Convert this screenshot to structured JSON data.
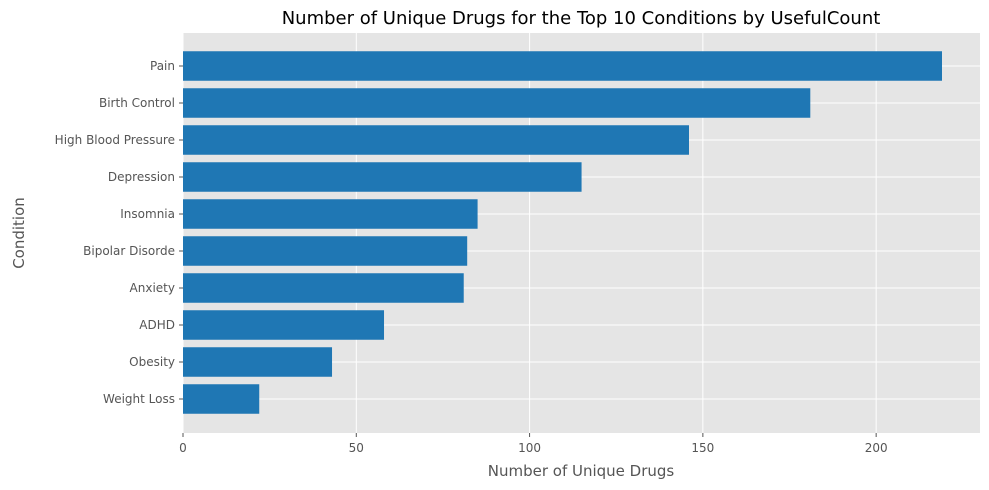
{
  "chart_data": {
    "type": "bar",
    "orientation": "horizontal",
    "title": "Number of Unique Drugs for the Top 10 Conditions by UsefulCount",
    "xlabel": "Number of Unique Drugs",
    "ylabel": "Condition",
    "categories": [
      "Pain",
      "Birth Control",
      "High Blood Pressure",
      "Depression",
      "Insomnia",
      "Bipolar Disorde",
      "Anxiety",
      "ADHD",
      "Obesity",
      "Weight Loss"
    ],
    "values": [
      219,
      181,
      146,
      115,
      85,
      82,
      81,
      58,
      43,
      22
    ],
    "xlim": [
      0,
      230
    ],
    "xticks": [
      0,
      50,
      100,
      150,
      200
    ],
    "grid": true,
    "colors": {
      "bar": "#1f77b4",
      "plot_background": "#e5e5e5",
      "grid": "#ffffff"
    }
  }
}
